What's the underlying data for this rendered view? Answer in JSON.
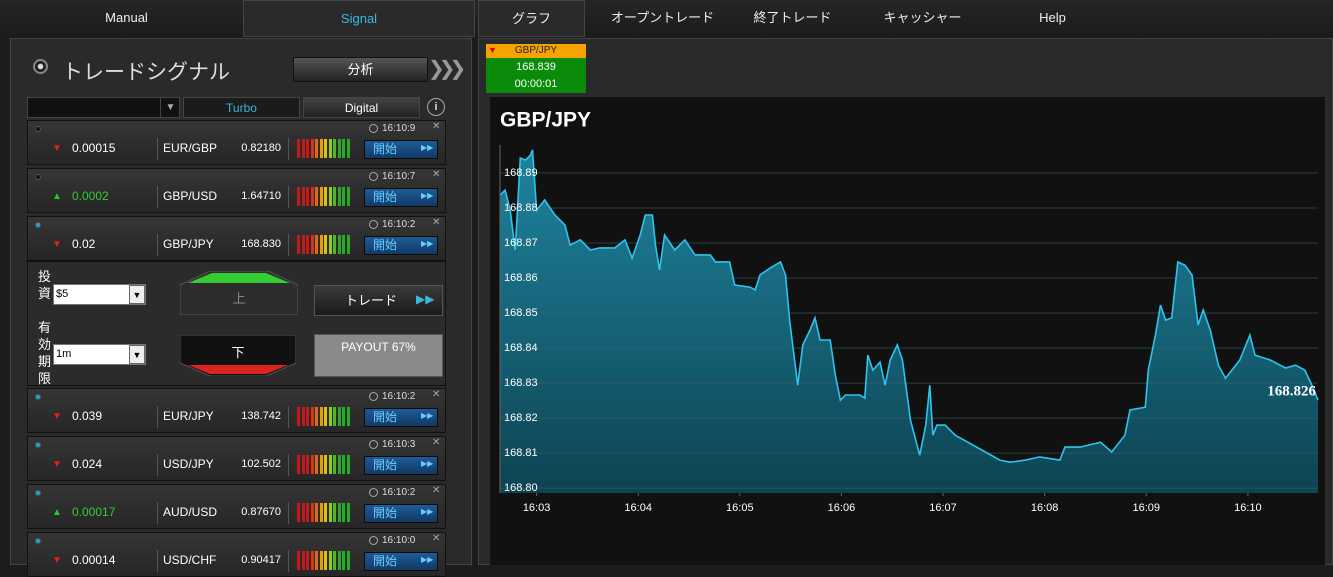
{
  "nav": {
    "left": [
      "Manual",
      "Signal"
    ],
    "right": [
      "グラフ",
      "オープントレード",
      "終了トレード",
      "キャッシャー",
      "Help"
    ]
  },
  "panel": {
    "title": "トレードシグナル",
    "analyze_button": "分析",
    "filters": [
      "Turbo",
      "Digital"
    ]
  },
  "signals": [
    {
      "change": "0.00015",
      "direction": "down",
      "pair": "EUR/GBP",
      "price": "0.82180",
      "time": "16:10:9",
      "button": "開始"
    },
    {
      "change": "0.0002",
      "direction": "up",
      "pair": "GBP/USD",
      "price": "1.64710",
      "time": "16:10:7",
      "button": "開始"
    },
    {
      "change": "0.02",
      "direction": "down",
      "pair": "GBP/JPY",
      "price": "168.830",
      "time": "16:10:2",
      "button": "開始"
    },
    {
      "change": "0.039",
      "direction": "down",
      "pair": "EUR/JPY",
      "price": "138.742",
      "time": "16:10:2",
      "button": "開始"
    },
    {
      "change": "0.024",
      "direction": "down",
      "pair": "USD/JPY",
      "price": "102.502",
      "time": "16:10:3",
      "button": "開始"
    },
    {
      "change": "0.00017",
      "direction": "up",
      "pair": "AUD/USD",
      "price": "0.87670",
      "time": "16:10:2",
      "button": "開始"
    },
    {
      "change": "0.00014",
      "direction": "down",
      "pair": "USD/CHF",
      "price": "0.90417",
      "time": "16:10:0",
      "button": "開始"
    }
  ],
  "trade_form": {
    "amount_label": "投資",
    "amount": "$5",
    "expiry_label": "有効期限",
    "expiry": "1m",
    "up": "上",
    "down": "下",
    "trade_button": "トレード",
    "payout": "PAYOUT 67%"
  },
  "ticker": {
    "pair": "GBP/JPY",
    "price": "168.839",
    "timer": "00:00:01"
  },
  "chart_data": {
    "type": "area",
    "title": "GBP/JPY",
    "annotation": "168.826",
    "color": "#2ec4ec",
    "grid": true,
    "x": [
      962.64,
      962.69,
      962.74,
      962.79,
      962.84,
      962.89,
      962.94,
      962.96,
      963.0,
      963.08,
      963.18,
      963.28,
      963.33,
      963.43,
      963.53,
      963.62,
      963.77,
      963.87,
      963.94,
      964.02,
      964.07,
      964.14,
      964.17,
      964.21,
      964.26,
      964.36,
      964.46,
      964.56,
      964.71,
      964.76,
      964.9,
      964.95,
      965.1,
      965.15,
      965.2,
      965.3,
      965.4,
      965.45,
      965.49,
      965.57,
      965.62,
      965.69,
      965.74,
      965.79,
      965.89,
      965.94,
      965.99,
      966.04,
      966.18,
      966.23,
      966.26,
      966.31,
      966.38,
      966.43,
      966.48,
      966.55,
      966.6,
      966.68,
      966.77,
      966.83,
      966.87,
      966.9,
      966.94,
      967.02,
      967.12,
      967.56,
      967.66,
      967.81,
      967.95,
      968.15,
      968.2,
      968.35,
      968.55,
      968.66,
      968.79,
      968.84,
      968.99,
      969.02,
      969.09,
      969.14,
      969.19,
      969.25,
      969.31,
      969.38,
      969.45,
      969.51,
      969.56,
      969.63,
      969.71,
      969.78,
      969.92,
      970.02,
      970.07,
      970.22,
      970.37,
      970.47,
      970.56,
      970.63,
      970.69
    ],
    "values": [
      168.8837,
      168.8851,
      168.8794,
      168.868,
      168.8943,
      168.8937,
      168.8951,
      168.8966,
      168.8794,
      168.8823,
      168.878,
      168.8751,
      168.8694,
      168.8709,
      168.868,
      168.8686,
      168.8686,
      168.8709,
      168.8657,
      168.8723,
      168.878,
      168.878,
      168.8694,
      168.8623,
      168.8723,
      168.868,
      168.8709,
      168.8666,
      168.8666,
      168.8646,
      168.8646,
      168.858,
      168.8574,
      168.8566,
      168.8609,
      168.8629,
      168.8646,
      168.8609,
      168.848,
      168.8294,
      168.8409,
      168.8451,
      168.8486,
      168.8423,
      168.8423,
      168.8323,
      168.8251,
      168.8266,
      168.8266,
      168.8257,
      168.838,
      168.8337,
      168.836,
      168.8294,
      168.8366,
      168.8409,
      168.8366,
      168.8194,
      168.8094,
      168.818,
      168.8294,
      168.8151,
      168.818,
      168.818,
      168.8151,
      168.808,
      168.8074,
      168.808,
      168.8089,
      168.808,
      168.8117,
      168.8117,
      168.8131,
      168.8103,
      168.8151,
      168.8223,
      168.8231,
      168.8337,
      168.8437,
      168.8523,
      168.848,
      168.8486,
      168.8646,
      168.8637,
      168.8609,
      168.8466,
      168.8509,
      168.8451,
      168.8351,
      168.8314,
      168.8366,
      168.8437,
      168.838,
      168.8366,
      168.8343,
      168.8351,
      168.8337,
      168.8294,
      168.8251
    ],
    "xlim": [
      962.64,
      970.69
    ],
    "xticks": [
      {
        "value": 963,
        "label": "16:03"
      },
      {
        "value": 964,
        "label": "16:04"
      },
      {
        "value": 965,
        "label": "16:05"
      },
      {
        "value": 966,
        "label": "16:06"
      },
      {
        "value": 967,
        "label": "16:07"
      },
      {
        "value": 968,
        "label": "16:08"
      },
      {
        "value": 969,
        "label": "16:09"
      },
      {
        "value": 970,
        "label": "16:10"
      }
    ],
    "ylim": [
      168.7986,
      168.898
    ],
    "yticks": [
      {
        "value": 168.8,
        "label": "168.80"
      },
      168.81,
      168.82,
      168.83,
      168.84,
      168.85,
      168.86,
      168.87,
      168.88,
      168.89
    ]
  }
}
